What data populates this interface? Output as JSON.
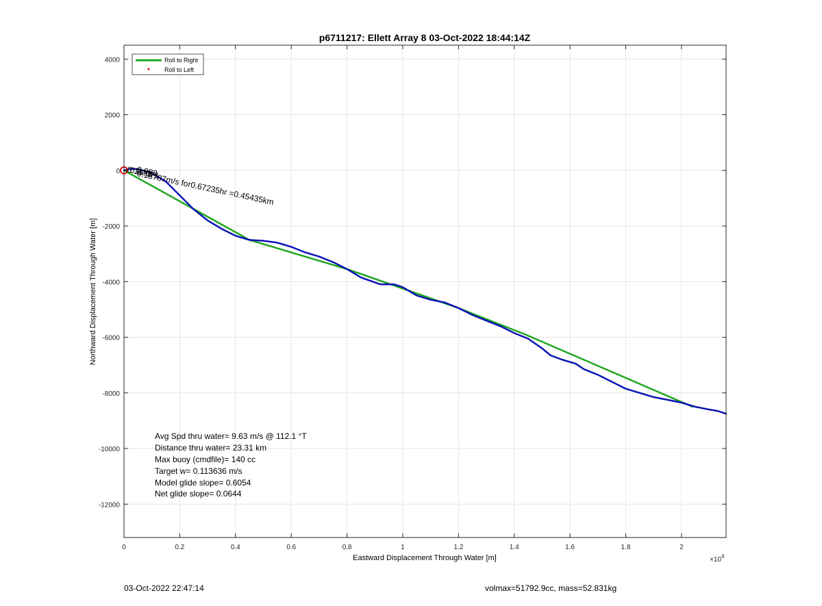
{
  "chart_data": {
    "type": "line",
    "title": "p6711217: Ellett Array 8 03-Oct-2022 18:44:14Z",
    "xlabel": "Eastward Displacement Through Water [m]",
    "ylabel": "Northward Displacement Through Water [m]",
    "x_exponent_label": "×10",
    "x_exponent_power": "4",
    "xlim": [
      0,
      21600
    ],
    "ylim": [
      -13200,
      4500
    ],
    "x_scale_factor": 10000,
    "x_ticks": [
      0,
      2000,
      4000,
      6000,
      8000,
      10000,
      12000,
      14000,
      16000,
      18000,
      20000
    ],
    "x_tick_labels": [
      "0",
      "0.2",
      "0.4",
      "0.6",
      "0.8",
      "1",
      "1.2",
      "1.4",
      "1.6",
      "1.8",
      "2"
    ],
    "y_ticks": [
      4000,
      2000,
      0,
      -2000,
      -4000,
      -6000,
      -8000,
      -10000,
      -12000
    ],
    "y_tick_labels": [
      "4000",
      "2000",
      "0",
      "-2000",
      "-4000",
      "-6000",
      "-8000",
      "-10000",
      "-12000"
    ],
    "grid": true,
    "legend_placement": "top-left",
    "legend": [
      {
        "label": "Roll to Right",
        "color": "#1fa61f",
        "style": "line"
      },
      {
        "label": "Roll to Left",
        "color": "#e00000",
        "style": "dot"
      }
    ],
    "series": [
      {
        "name": "Roll to Right",
        "color": "#1fa61f",
        "x": [
          0,
          4500,
          8000,
          12000,
          14400,
          20400
        ],
        "y": [
          0,
          -2500,
          -3550,
          -4950,
          -5900,
          -8500
        ]
      },
      {
        "color": "#0a14b4",
        "x": [
          0,
          200,
          500,
          1000,
          1500,
          2000,
          2500,
          3000,
          3500,
          4000,
          4500,
          5000,
          5500,
          6000,
          6500,
          7000,
          7500,
          8000,
          8500,
          9200,
          9700,
          10000,
          10500,
          11000,
          11500,
          12000,
          12500,
          13000,
          13500,
          14000,
          14500,
          15000,
          15300,
          15700,
          16200,
          16500,
          17000,
          17500,
          18000,
          18500,
          19000,
          19500,
          20000,
          20500,
          21000,
          21300,
          21600
        ],
        "y": [
          0,
          50,
          50,
          -100,
          -400,
          -900,
          -1400,
          -1800,
          -2100,
          -2350,
          -2500,
          -2530,
          -2600,
          -2750,
          -2950,
          -3100,
          -3300,
          -3550,
          -3850,
          -4100,
          -4100,
          -4200,
          -4500,
          -4650,
          -4750,
          -4950,
          -5200,
          -5400,
          -5600,
          -5850,
          -6050,
          -6400,
          -6650,
          -6800,
          -6950,
          -7150,
          -7350,
          -7600,
          -7850,
          -8000,
          -8150,
          -8250,
          -8350,
          -8500,
          -8600,
          -8650,
          -8750
        ]
      }
    ],
    "markers": [
      {
        "label": "origin-circle",
        "x": 0,
        "y": 0,
        "color": "#e00000"
      }
    ],
    "annotations": [
      {
        "text": "0.1878",
        "x": 100,
        "y": -60,
        "rotation": 12
      },
      {
        "text": "0.07071",
        "x": 200,
        "y": -80,
        "rotation": 12
      },
      {
        "text": "0.083",
        "x": 450,
        "y": -60,
        "rotation": 12
      },
      {
        "text": "0.18787m/s for0.67235hr =0.45435km",
        "x": 450,
        "y": -200,
        "rotation": 12
      }
    ],
    "stats": [
      "Avg Spd thru water=  9.63 m/s @ 112.1 °T",
      "Distance thru water= 23.31 km",
      "Max buoy (cmdfile)= 140 cc",
      "Target w= 0.113636 m/s",
      "Model glide slope= 0.6054",
      "Net glide slope= 0.0644"
    ]
  },
  "footer": {
    "left": "03-Oct-2022 22:47:14",
    "right": "volmax=51792.9cc, mass=52.831kg"
  }
}
